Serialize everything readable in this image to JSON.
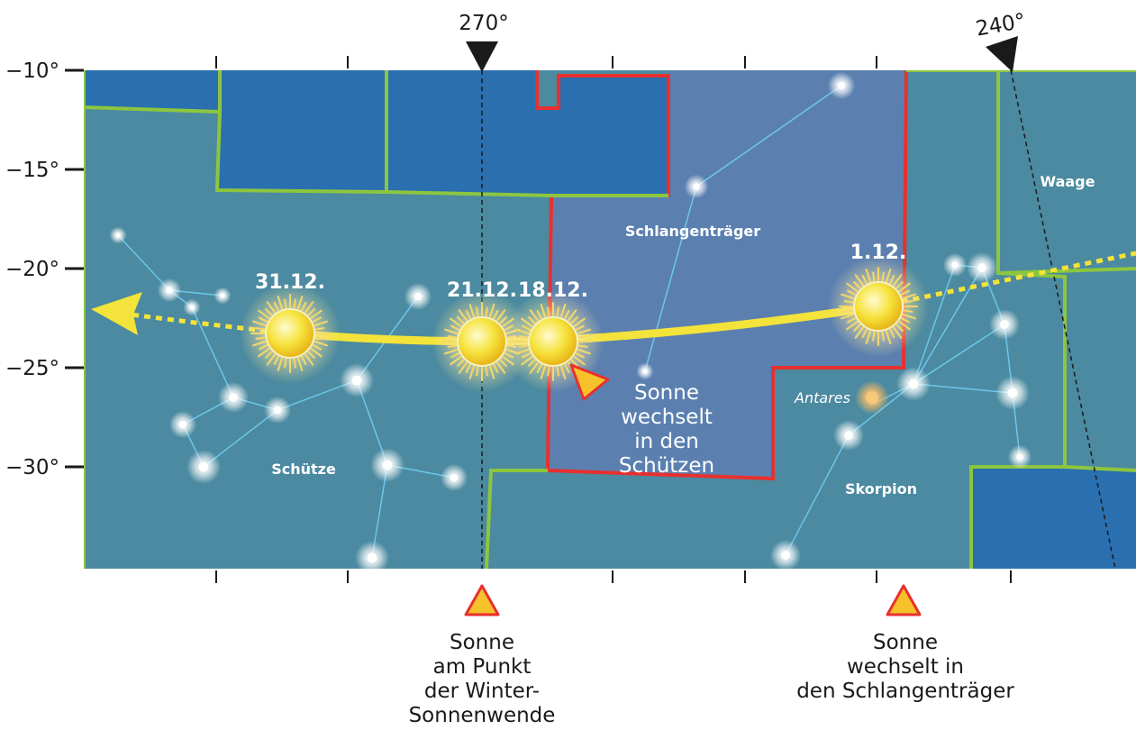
{
  "axis": {
    "dec_labels": [
      "−10°",
      "−15°",
      "−20°",
      "−25°",
      "−30°"
    ],
    "ra_labels": [
      "270°",
      "240°"
    ]
  },
  "dates": {
    "d1": "31.12.",
    "d2": "21.12.",
    "d3": "18.12.",
    "d4": "1.12."
  },
  "constellations": {
    "sagittarius": "Schütze",
    "ophiuchus": "Schlangenträger",
    "scorpius": "Skorpion",
    "libra": "Waage"
  },
  "stars": {
    "antares": "Antares"
  },
  "notes": {
    "enter_sagittarius": [
      "Sonne",
      "wechselt",
      "in den Schützen"
    ],
    "solstice": [
      "Sonne",
      "am Punkt",
      "der Winter-",
      "Sonnenwende"
    ],
    "enter_ophiuchus": [
      "Sonne",
      "wechselt in",
      "den Schlangenträger"
    ]
  },
  "colors": {
    "sky": "#4b8aa0",
    "dark_region": "#2a6faf",
    "ophiuchus_region": "#5b80b0",
    "boundary": "#8cc63f",
    "ophiuchus_border": "#e8302f",
    "sun_path": "#f3e33a",
    "constellation_line": "#6cc6ea",
    "marker": "#f6c12a"
  }
}
